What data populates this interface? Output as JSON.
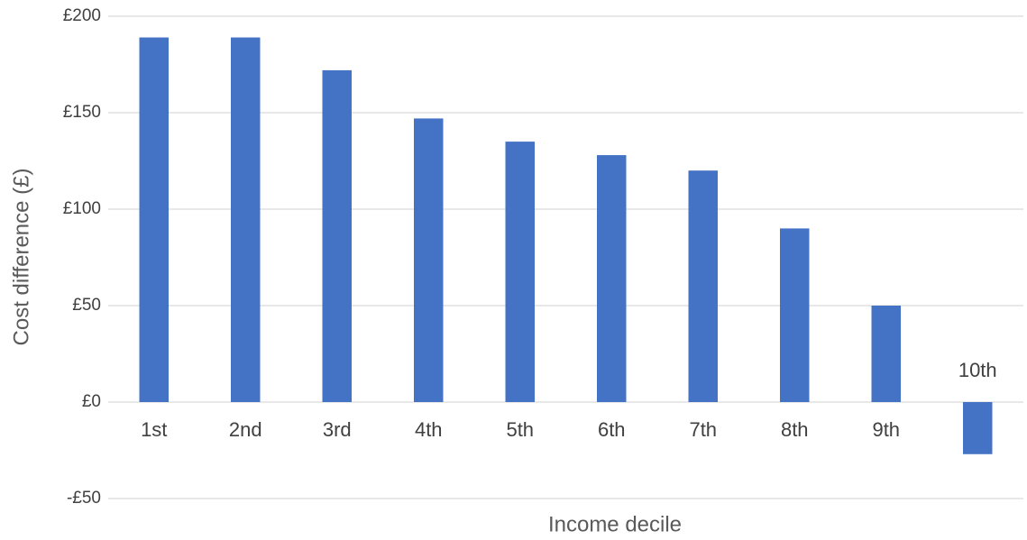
{
  "chart_data": {
    "type": "bar",
    "x_label": "Income decile",
    "y_label": "Cost difference (£)",
    "categories": [
      "1st",
      "2nd",
      "3rd",
      "4th",
      "5th",
      "6th",
      "7th",
      "8th",
      "9th",
      "10th"
    ],
    "values": [
      189,
      189,
      172,
      147,
      135,
      128,
      120,
      90,
      50,
      -27
    ],
    "color": "#4472c4",
    "ylim": [
      -50,
      200
    ],
    "yticks": [
      {
        "value": -50,
        "label": "-£50"
      },
      {
        "value": 0,
        "label": "£0"
      },
      {
        "value": 50,
        "label": "£50"
      },
      {
        "value": 100,
        "label": "£100"
      },
      {
        "value": 150,
        "label": "£150"
      },
      {
        "value": 200,
        "label": "£200"
      }
    ],
    "grid": true
  }
}
